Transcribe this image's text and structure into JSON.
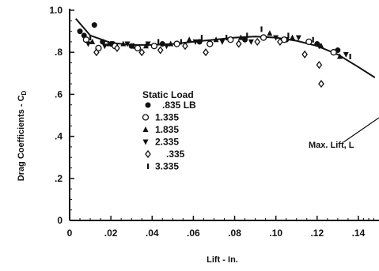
{
  "chart_data": {
    "type": "scatter",
    "xlabel": "Lift - In.",
    "ylabel": "Drag Coefficients - C",
    "ylabel_sub": "D",
    "xlim": [
      0,
      0.15
    ],
    "ylim": [
      0,
      1.0
    ],
    "xticks": [
      {
        "v": 0,
        "label": "0"
      },
      {
        "v": 0.02,
        "label": ".02"
      },
      {
        "v": 0.04,
        "label": ".04"
      },
      {
        "v": 0.06,
        "label": ".06"
      },
      {
        "v": 0.08,
        "label": ".08"
      },
      {
        "v": 0.1,
        "label": ".10"
      },
      {
        "v": 0.12,
        "label": ".12"
      },
      {
        "v": 0.14,
        "label": ".14"
      }
    ],
    "yticks": [
      {
        "v": 0,
        "label": "0"
      },
      {
        "v": 0.2,
        "label": ".2"
      },
      {
        "v": 0.4,
        "label": ".4"
      },
      {
        "v": 0.6,
        "label": ".6"
      },
      {
        "v": 0.8,
        "label": ".8"
      },
      {
        "v": 1.0,
        "label": "1.0"
      }
    ],
    "legend_title": "Static Load",
    "legend_position": "center-left",
    "annotation": "Max. Lift, L",
    "series": [
      {
        "name": ".835 LB",
        "marker": "filled-circle",
        "points": [
          [
            0.005,
            0.9
          ],
          [
            0.007,
            0.88
          ],
          [
            0.012,
            0.93
          ],
          [
            0.016,
            0.85
          ],
          [
            0.021,
            0.84
          ],
          [
            0.03,
            0.83
          ],
          [
            0.045,
            0.84
          ],
          [
            0.063,
            0.85
          ],
          [
            0.085,
            0.86
          ],
          [
            0.105,
            0.86
          ],
          [
            0.12,
            0.84
          ],
          [
            0.13,
            0.81
          ]
        ]
      },
      {
        "name": "1.335",
        "marker": "open-circle",
        "points": [
          [
            0.008,
            0.86
          ],
          [
            0.014,
            0.82
          ],
          [
            0.022,
            0.83
          ],
          [
            0.033,
            0.82
          ],
          [
            0.041,
            0.83
          ],
          [
            0.052,
            0.84
          ],
          [
            0.068,
            0.84
          ],
          [
            0.078,
            0.86
          ],
          [
            0.094,
            0.87
          ],
          [
            0.104,
            0.86
          ],
          [
            0.116,
            0.85
          ],
          [
            0.128,
            0.8
          ]
        ]
      },
      {
        "name": "1.835",
        "marker": "filled-triangle",
        "points": [
          [
            0.011,
            0.85
          ],
          [
            0.019,
            0.84
          ],
          [
            0.026,
            0.84
          ],
          [
            0.037,
            0.83
          ],
          [
            0.049,
            0.84
          ],
          [
            0.058,
            0.86
          ],
          [
            0.071,
            0.86
          ],
          [
            0.083,
            0.87
          ],
          [
            0.097,
            0.89
          ],
          [
            0.108,
            0.87
          ],
          [
            0.122,
            0.83
          ],
          [
            0.131,
            0.78
          ]
        ]
      },
      {
        "name": "2.335",
        "marker": "filled-triangle-down",
        "points": [
          [
            0.009,
            0.84
          ],
          [
            0.017,
            0.83
          ],
          [
            0.028,
            0.84
          ],
          [
            0.038,
            0.84
          ],
          [
            0.047,
            0.83
          ],
          [
            0.061,
            0.85
          ],
          [
            0.074,
            0.85
          ],
          [
            0.088,
            0.85
          ],
          [
            0.1,
            0.87
          ],
          [
            0.111,
            0.87
          ],
          [
            0.121,
            0.83
          ],
          [
            0.134,
            0.79
          ]
        ]
      },
      {
        "name": ".335",
        "marker": "open-diamond",
        "points": [
          [
            0.013,
            0.8
          ],
          [
            0.023,
            0.82
          ],
          [
            0.035,
            0.8
          ],
          [
            0.044,
            0.81
          ],
          [
            0.056,
            0.83
          ],
          [
            0.066,
            0.8
          ],
          [
            0.082,
            0.84
          ],
          [
            0.091,
            0.85
          ],
          [
            0.102,
            0.85
          ],
          [
            0.114,
            0.79
          ],
          [
            0.121,
            0.74
          ],
          [
            0.122,
            0.65
          ]
        ]
      },
      {
        "name": "3.335",
        "marker": "bar",
        "points": [
          [
            0.01,
            0.87
          ],
          [
            0.02,
            0.84
          ],
          [
            0.031,
            0.83
          ],
          [
            0.043,
            0.85
          ],
          [
            0.054,
            0.85
          ],
          [
            0.064,
            0.87
          ],
          [
            0.076,
            0.87
          ],
          [
            0.086,
            0.88
          ],
          [
            0.093,
            0.91
          ],
          [
            0.106,
            0.88
          ],
          [
            0.118,
            0.86
          ],
          [
            0.136,
            0.78
          ]
        ]
      }
    ],
    "fit_curve": {
      "x": [
        0.003,
        0.01,
        0.02,
        0.03,
        0.04,
        0.05,
        0.06,
        0.07,
        0.08,
        0.09,
        0.1,
        0.11,
        0.12,
        0.13,
        0.14,
        0.148
      ],
      "y": [
        0.96,
        0.88,
        0.845,
        0.835,
        0.835,
        0.84,
        0.85,
        0.86,
        0.87,
        0.875,
        0.87,
        0.855,
        0.83,
        0.79,
        0.73,
        0.68
      ]
    }
  }
}
